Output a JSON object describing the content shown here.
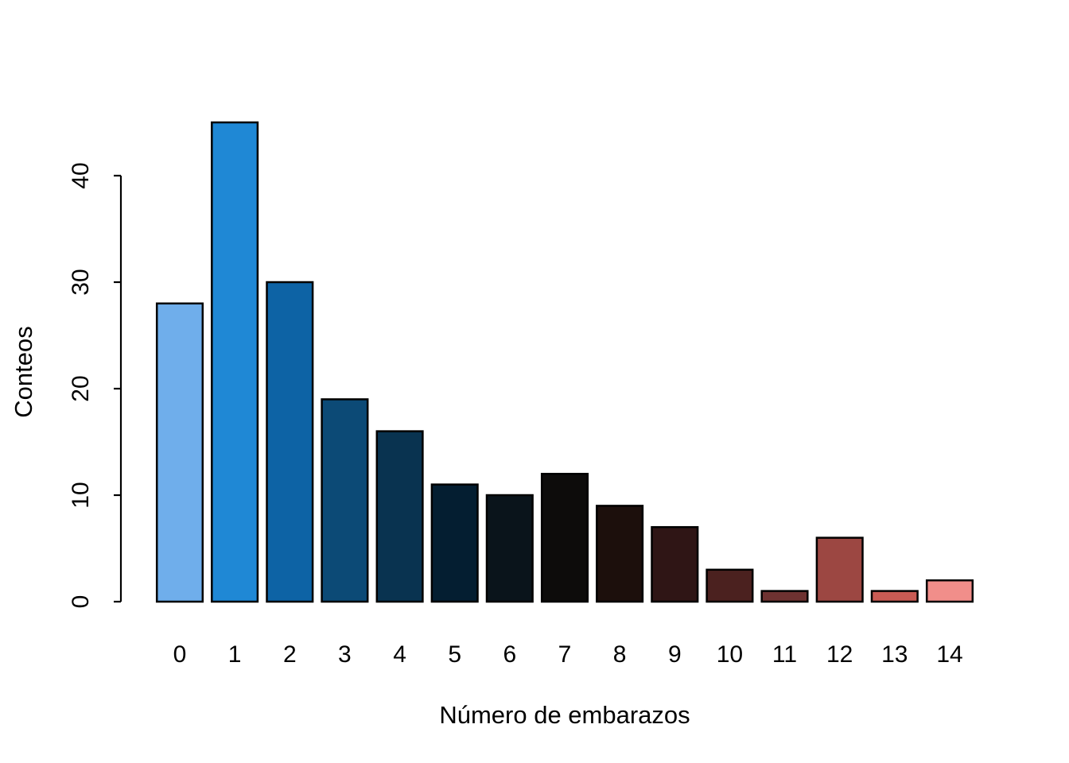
{
  "figure": {
    "background": "#FFFFFF",
    "text_color": "#000000",
    "axis_color": "#000000"
  },
  "chart_data": {
    "type": "bar",
    "title": "",
    "xlabel": "Número de embarazos",
    "ylabel": "Conteos",
    "categories": [
      "0",
      "1",
      "2",
      "3",
      "4",
      "5",
      "6",
      "7",
      "8",
      "9",
      "10",
      "11",
      "12",
      "13",
      "14"
    ],
    "values": [
      28,
      45,
      30,
      19,
      16,
      11,
      10,
      12,
      9,
      7,
      3,
      1,
      6,
      1,
      2
    ],
    "bar_colors": [
      "#6FAEEB",
      "#1F88D5",
      "#0D63A5",
      "#0C4A76",
      "#093350",
      "#041E31",
      "#0A141B",
      "#0D0C0B",
      "#1C0F0C",
      "#2F1515",
      "#4B211F",
      "#6E3231",
      "#9C4742",
      "#C95B54",
      "#F18E8A"
    ],
    "bar_border_color": "#000000",
    "ylim": [
      0,
      45
    ],
    "yticks": [
      0,
      10,
      20,
      30,
      40
    ],
    "grid": "off",
    "legend": "none"
  }
}
